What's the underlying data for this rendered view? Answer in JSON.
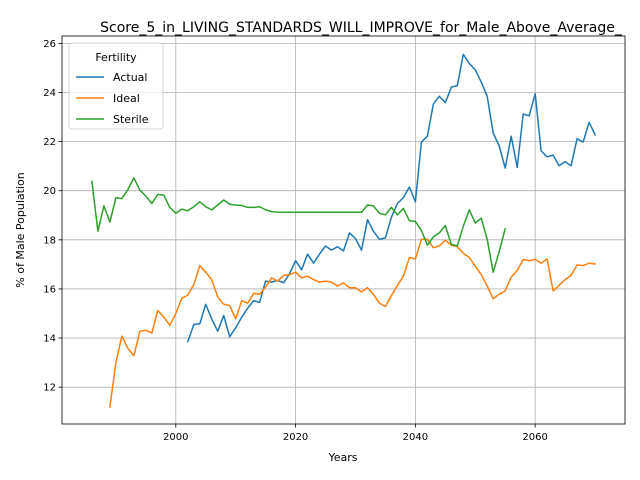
{
  "chart_data": {
    "type": "line",
    "title": "Score_5_in_LIVING_STANDARDS_WILL_IMPROVE_for_Male_Above_Average_",
    "xlabel": "Years",
    "ylabel": "% of Male Population",
    "xlim": [
      1981,
      2075
    ],
    "ylim": [
      10.5,
      26.3
    ],
    "xticks": [
      2000,
      2020,
      2040,
      2060
    ],
    "yticks": [
      12,
      14,
      16,
      18,
      20,
      22,
      24,
      26
    ],
    "grid": true,
    "legend": {
      "title": "Fertility",
      "placement": "top-left"
    },
    "series": [
      {
        "name": "Actual",
        "color": "#1f77b4",
        "x": [
          2002,
          2003,
          2004,
          2005,
          2006,
          2007,
          2008,
          2009,
          2010,
          2011,
          2012,
          2013,
          2014,
          2015,
          2016,
          2017,
          2018,
          2019,
          2020,
          2021,
          2022,
          2023,
          2024,
          2025,
          2026,
          2027,
          2028,
          2029,
          2030,
          2031,
          2032,
          2033,
          2034,
          2035,
          2036,
          2037,
          2038,
          2039,
          2040,
          2041,
          2042,
          2043,
          2044,
          2045,
          2046,
          2047,
          2048,
          2049,
          2050,
          2051,
          2052,
          2053,
          2054,
          2055,
          2056,
          2057,
          2058,
          2059,
          2060,
          2061,
          2062,
          2063,
          2064,
          2065,
          2066,
          2067,
          2068,
          2069,
          2070
        ],
        "y": [
          13.85,
          14.55,
          14.58,
          15.37,
          14.78,
          14.28,
          14.92,
          14.05,
          14.42,
          14.85,
          15.22,
          15.52,
          15.45,
          16.32,
          16.28,
          16.35,
          16.25,
          16.62,
          17.15,
          16.78,
          17.42,
          17.05,
          17.42,
          17.75,
          17.58,
          17.72,
          17.55,
          18.28,
          18.05,
          17.58,
          18.82,
          18.35,
          18.02,
          18.08,
          18.92,
          19.48,
          19.72,
          20.15,
          19.55,
          21.98,
          22.22,
          23.52,
          23.85,
          23.58,
          24.22,
          24.28,
          25.55,
          25.18,
          24.92,
          24.42,
          23.85,
          22.35,
          21.82,
          20.92,
          22.22,
          20.95,
          23.12,
          23.05,
          23.95,
          21.62,
          21.38,
          21.45,
          21.02,
          21.18,
          21.02,
          22.12,
          21.98,
          22.78,
          22.28
        ]
      },
      {
        "name": "Ideal",
        "color": "#ff7f0e",
        "x": [
          1989,
          1990,
          1991,
          1992,
          1993,
          1994,
          1995,
          1996,
          1997,
          1998,
          1999,
          2000,
          2001,
          2002,
          2003,
          2004,
          2005,
          2006,
          2007,
          2008,
          2009,
          2010,
          2011,
          2012,
          2013,
          2014,
          2015,
          2016,
          2017,
          2018,
          2019,
          2020,
          2021,
          2022,
          2023,
          2024,
          2025,
          2026,
          2027,
          2028,
          2029,
          2030,
          2031,
          2032,
          2033,
          2034,
          2035,
          2036,
          2037,
          2038,
          2039,
          2040,
          2041,
          2042,
          2043,
          2044,
          2045,
          2046,
          2047,
          2048,
          2049,
          2050,
          2051,
          2052,
          2053,
          2054,
          2055,
          2056,
          2057,
          2058,
          2059,
          2060,
          2061,
          2062,
          2063,
          2064,
          2065,
          2066,
          2067,
          2068,
          2069,
          2070
        ],
        "y": [
          11.2,
          13.0,
          14.08,
          13.58,
          13.28,
          14.28,
          14.32,
          14.2,
          15.12,
          14.85,
          14.52,
          15.0,
          15.62,
          15.75,
          16.18,
          16.95,
          16.68,
          16.38,
          15.68,
          15.38,
          15.32,
          14.78,
          15.52,
          15.42,
          15.82,
          15.78,
          16.08,
          16.45,
          16.32,
          16.55,
          16.58,
          16.68,
          16.45,
          16.52,
          16.38,
          16.28,
          16.32,
          16.28,
          16.12,
          16.25,
          16.05,
          16.05,
          15.88,
          16.05,
          15.78,
          15.42,
          15.28,
          15.72,
          16.15,
          16.52,
          17.28,
          17.22,
          18.02,
          18.02,
          17.68,
          17.75,
          17.98,
          17.78,
          17.72,
          17.45,
          17.28,
          16.92,
          16.58,
          16.12,
          15.6,
          15.78,
          15.92,
          16.48,
          16.75,
          17.2,
          17.15,
          17.2,
          17.05,
          17.22,
          15.92,
          16.15,
          16.38,
          16.55,
          16.98,
          16.95,
          17.05,
          17.02
        ]
      },
      {
        "name": "Sterile",
        "color": "#2ca02c",
        "x": [
          1986,
          1987,
          1988,
          1989,
          1990,
          1991,
          1992,
          1993,
          1994,
          1995,
          1996,
          1997,
          1998,
          1999,
          2000,
          2001,
          2002,
          2003,
          2004,
          2005,
          2006,
          2007,
          2008,
          2009,
          2010,
          2011,
          2012,
          2013,
          2014,
          2015,
          2016,
          2017,
          2018,
          2019,
          2020,
          2021,
          2022,
          2023,
          2024,
          2025,
          2026,
          2027,
          2028,
          2029,
          2030,
          2031,
          2032,
          2033,
          2034,
          2035,
          2036,
          2037,
          2038,
          2039,
          2040,
          2041,
          2042,
          2043,
          2044,
          2045,
          2046,
          2047,
          2048,
          2049,
          2050,
          2051,
          2052,
          2053,
          2054,
          2055
        ],
        "y": [
          20.38,
          18.35,
          19.38,
          18.72,
          19.72,
          19.68,
          20.05,
          20.52,
          20.02,
          19.78,
          19.48,
          19.85,
          19.82,
          19.32,
          19.08,
          19.25,
          19.18,
          19.35,
          19.55,
          19.35,
          19.22,
          19.42,
          19.62,
          19.45,
          19.42,
          19.4,
          19.32,
          19.32,
          19.35,
          19.22,
          19.15,
          19.13,
          19.12,
          19.12,
          19.12,
          19.12,
          19.12,
          19.12,
          19.12,
          19.12,
          19.12,
          19.12,
          19.12,
          19.12,
          19.12,
          19.12,
          19.42,
          19.38,
          19.08,
          19.02,
          19.32,
          19.02,
          19.28,
          18.78,
          18.75,
          18.38,
          17.78,
          18.12,
          18.28,
          18.58,
          17.82,
          17.75,
          18.55,
          19.22,
          18.68,
          18.88,
          18.02,
          16.68,
          17.52,
          18.45
        ]
      }
    ]
  }
}
